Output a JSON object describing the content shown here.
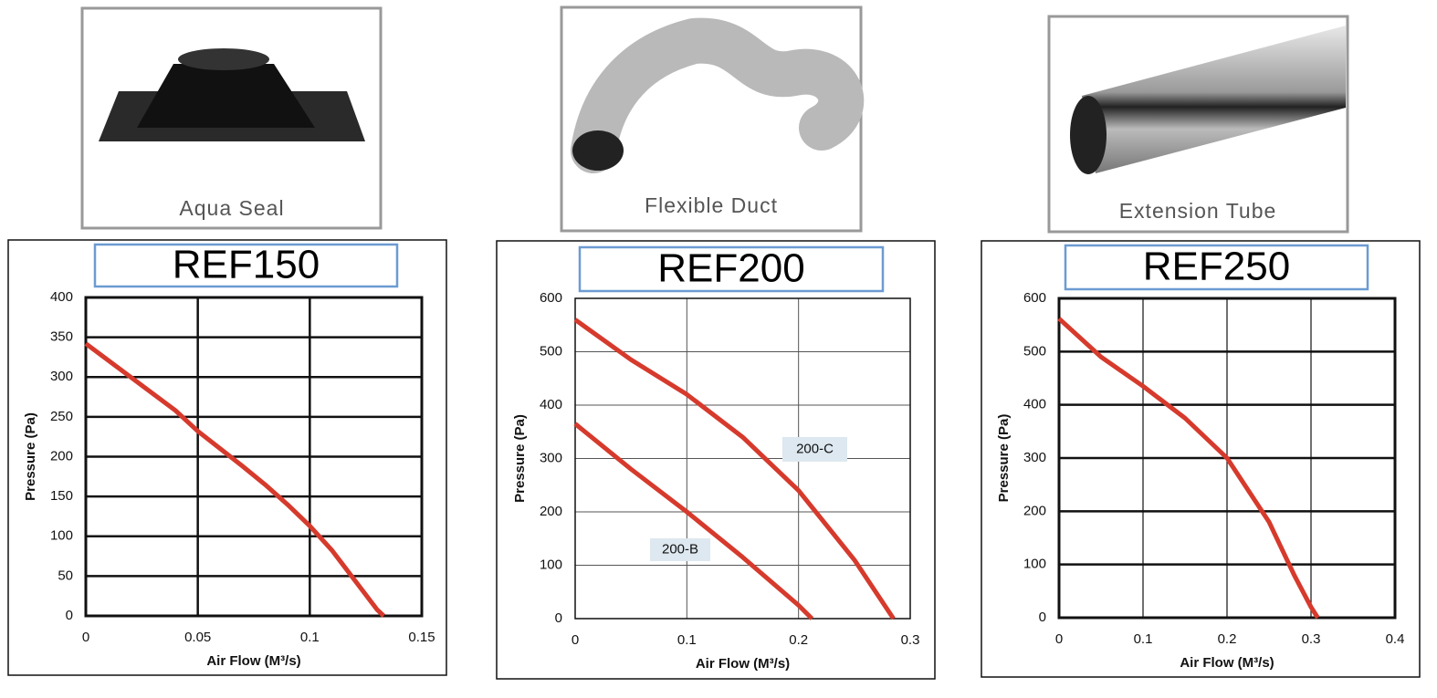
{
  "products": [
    {
      "caption": "Aqua Seal"
    },
    {
      "caption": "Flexible Duct"
    },
    {
      "caption": "Extension Tube"
    }
  ],
  "chart_data": [
    {
      "type": "line",
      "title": "REF150",
      "x_label": "Air Flow (M³/s)",
      "y_label": "Pressure (Pa)",
      "xlim": [
        0,
        0.15
      ],
      "xticks": [
        0,
        0.05,
        0.1,
        0.15
      ],
      "ylim": [
        0,
        400
      ],
      "yticks": [
        0,
        50,
        100,
        150,
        200,
        250,
        300,
        350,
        400
      ],
      "grid": true,
      "series": [
        {
          "color": "#d63a2c",
          "x": [
            0,
            0.02,
            0.04,
            0.05,
            0.06,
            0.07,
            0.08,
            0.09,
            0.1,
            0.11,
            0.12,
            0.13,
            0.133
          ],
          "values": [
            342,
            300,
            258,
            232,
            210,
            188,
            165,
            140,
            113,
            82,
            45,
            8,
            0
          ]
        }
      ]
    },
    {
      "type": "line",
      "title": "REF200",
      "x_label": "Air Flow (M³/s)",
      "y_label": "Pressure (Pa)",
      "xlim": [
        0,
        0.3
      ],
      "xticks": [
        0,
        0.1,
        0.2,
        0.3
      ],
      "ylim": [
        0,
        600
      ],
      "yticks": [
        0,
        100,
        200,
        300,
        400,
        500,
        600
      ],
      "grid": true,
      "series": [
        {
          "name": "200-C",
          "color": "#d63a2c",
          "x": [
            0,
            0.05,
            0.1,
            0.15,
            0.2,
            0.25,
            0.285
          ],
          "values": [
            560,
            485,
            420,
            340,
            240,
            110,
            0
          ]
        },
        {
          "name": "200-B",
          "color": "#d63a2c",
          "x": [
            0,
            0.05,
            0.1,
            0.15,
            0.2,
            0.212
          ],
          "values": [
            365,
            280,
            200,
            115,
            25,
            0
          ]
        }
      ]
    },
    {
      "type": "line",
      "title": "REF250",
      "x_label": "Air Flow (M³/s)",
      "y_label": "Pressure (Pa)",
      "xlim": [
        0,
        0.4
      ],
      "xticks": [
        0,
        0.1,
        0.2,
        0.3,
        0.4
      ],
      "ylim": [
        0,
        600
      ],
      "yticks": [
        0,
        100,
        200,
        300,
        400,
        500,
        600
      ],
      "grid": true,
      "series": [
        {
          "color": "#d63a2c",
          "x": [
            0,
            0.05,
            0.1,
            0.15,
            0.2,
            0.25,
            0.28,
            0.3,
            0.308
          ],
          "values": [
            562,
            490,
            435,
            375,
            300,
            180,
            80,
            20,
            0
          ]
        }
      ]
    }
  ]
}
